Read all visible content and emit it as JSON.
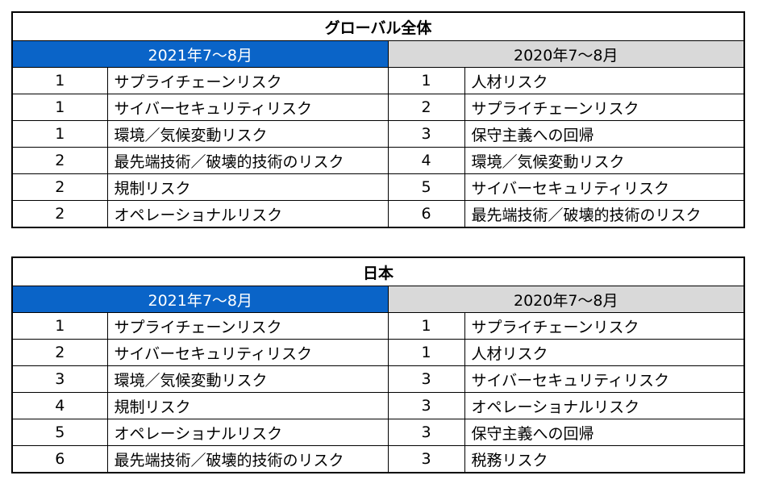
{
  "tables": [
    {
      "title": "グローバル全体",
      "headers": [
        "2021年7〜8月",
        "2020年7〜8月"
      ],
      "rows": [
        [
          1,
          "サプライチェーンリスク",
          1,
          "人材リスク"
        ],
        [
          1,
          "サイバーセキュリティリスク",
          2,
          "サプライチェーンリスク"
        ],
        [
          1,
          "環境／気候変動リスク",
          3,
          "保守主義への回帰"
        ],
        [
          2,
          "最先端技術／破壊的技術のリスク",
          4,
          "環境／気候変動リスク"
        ],
        [
          2,
          "規制リスク",
          5,
          "サイバーセキュリティリスク"
        ],
        [
          2,
          "オペレーショナルリスク",
          6,
          "最先端技術／破壊的技術のリスク"
        ]
      ]
    },
    {
      "title": "日本",
      "headers": [
        "2021年7〜8月",
        "2020年7〜8月"
      ],
      "rows": [
        [
          1,
          "サプライチェーンリスク",
          1,
          "サプライチェーンリスク"
        ],
        [
          2,
          "サイバーセキュリティリスク",
          1,
          "人材リスク"
        ],
        [
          3,
          "環境／気候変動リスク",
          3,
          "サイバーセキュリティリスク"
        ],
        [
          4,
          "規制リスク",
          3,
          "オペレーショナルリスク"
        ],
        [
          5,
          "オペレーショナルリスク",
          3,
          "保守主義への回帰"
        ],
        [
          6,
          "最先端技術／破壊的技術のリスク",
          3,
          "税務リスク"
        ]
      ]
    }
  ]
}
